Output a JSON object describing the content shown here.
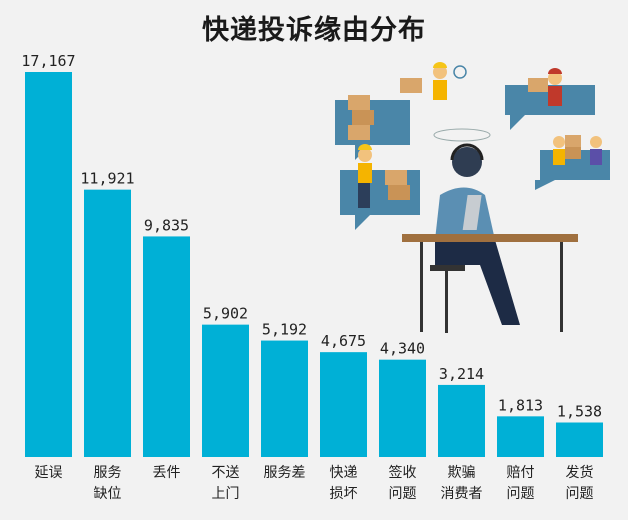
{
  "chart_data": {
    "type": "bar",
    "title": "快递投诉缘由分布",
    "categories": [
      "延误",
      "服务\n缺位",
      "丢件",
      "不送\n上门",
      "服务差",
      "快递\n损坏",
      "签收\n问题",
      "欺骗\n消费者",
      "赔付\n问题",
      "发货\n问题"
    ],
    "values": [
      17167,
      11921,
      9835,
      5902,
      5192,
      4675,
      4340,
      3214,
      1813,
      1538
    ],
    "value_labels": [
      "17,167",
      "11,921",
      "9,835",
      "5,902",
      "5,192",
      "4,675",
      "4,340",
      "3,214",
      "1,813",
      "1,538"
    ],
    "xlabel": "",
    "ylabel": "",
    "ylim": [
      0,
      17167
    ],
    "grid": false,
    "bar_color": "#00b0d6"
  },
  "illustration": {
    "icon": "customer-service-agent-with-delivery-workers"
  }
}
